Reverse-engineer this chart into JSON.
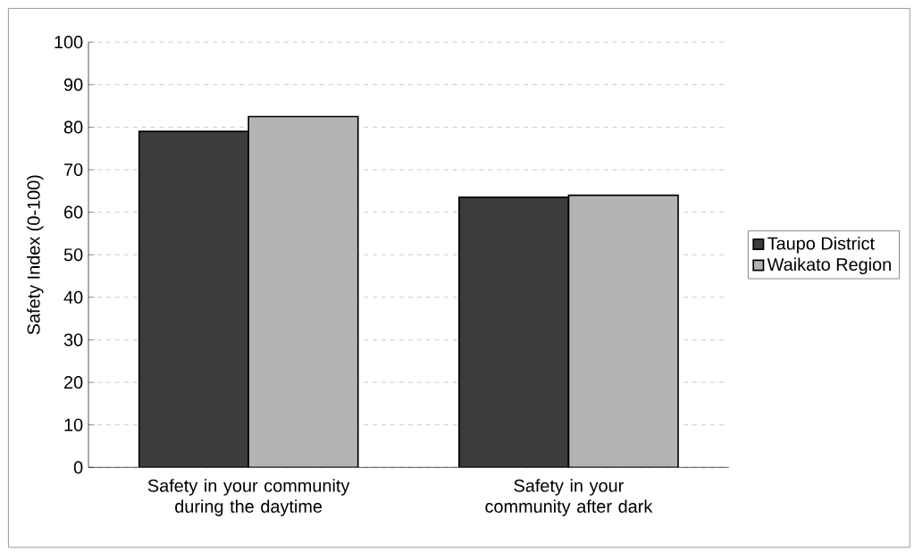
{
  "chart_data": {
    "type": "bar",
    "ylabel": "Safety Index (0-100)",
    "categories": [
      "Safety in your community during the daytime",
      "Safety in your community after dark"
    ],
    "series": [
      {
        "name": "Taupo District",
        "color": "#3c3c3c",
        "values": [
          79,
          63.5
        ]
      },
      {
        "name": "Waikato Region",
        "color": "#b4b4b4",
        "values": [
          82.5,
          64
        ]
      }
    ],
    "ylim": [
      0,
      100
    ],
    "yticks": [
      0,
      10,
      20,
      30,
      40,
      50,
      60,
      70,
      80,
      90,
      100
    ],
    "grid": "y",
    "legend": "right"
  }
}
